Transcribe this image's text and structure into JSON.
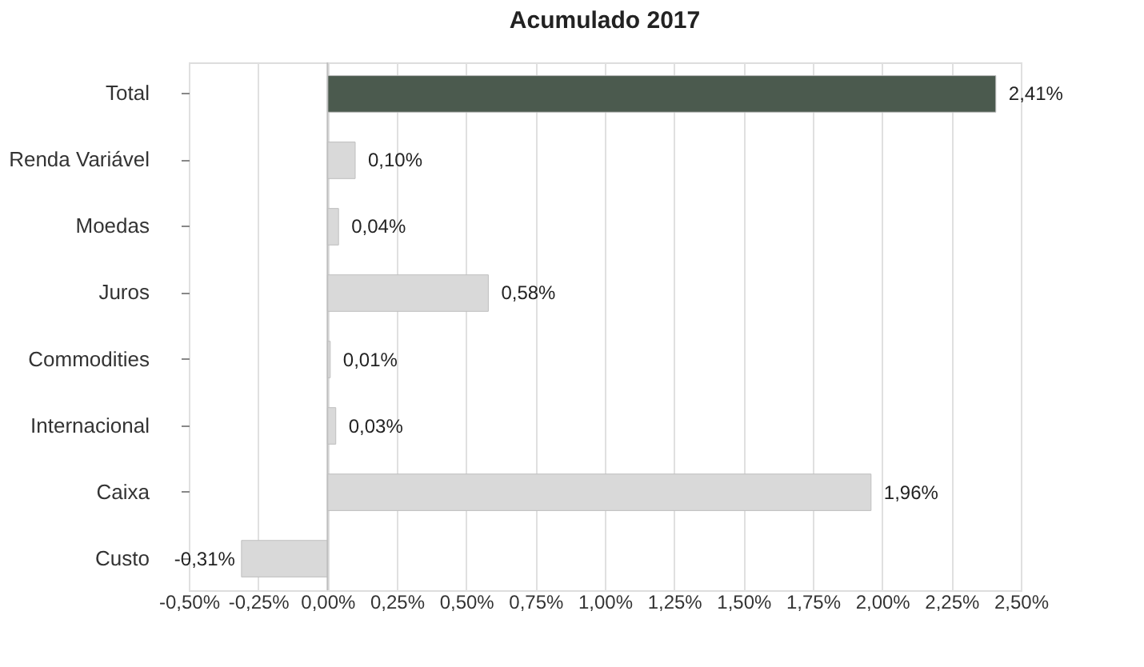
{
  "chart_data": {
    "type": "bar",
    "orientation": "horizontal",
    "title": "Acumulado  2017",
    "categories": [
      "Total",
      "Renda Variável",
      "Moedas",
      "Juros",
      "Commodities",
      "Internacional",
      "Caixa",
      "Custo"
    ],
    "values": [
      2.41,
      0.1,
      0.04,
      0.58,
      0.01,
      0.03,
      1.96,
      -0.31
    ],
    "colors": [
      "#4b5a4e",
      "#d9d9d9",
      "#d9d9d9",
      "#d9d9d9",
      "#d9d9d9",
      "#d9d9d9",
      "#d9d9d9",
      "#d9d9d9"
    ],
    "value_labels": [
      "2,41%",
      "0,10%",
      "0,04%",
      "0,58%",
      "0,01%",
      "0,03%",
      "1,96%",
      "-0,31%"
    ],
    "xlim": [
      -0.5,
      2.5
    ],
    "xticks": [
      {
        "value": -0.5,
        "label": "-0,50%"
      },
      {
        "value": -0.25,
        "label": "-0,25%"
      },
      {
        "value": 0,
        "label": "0,00%"
      },
      {
        "value": 0.25,
        "label": "0,25%"
      },
      {
        "value": 0.5,
        "label": "0,50%"
      },
      {
        "value": 0.75,
        "label": "0,75%"
      },
      {
        "value": 1.0,
        "label": "1,00%"
      },
      {
        "value": 1.25,
        "label": "1,25%"
      },
      {
        "value": 1.5,
        "label": "1,50%"
      },
      {
        "value": 1.75,
        "label": "1,75%"
      },
      {
        "value": 2.0,
        "label": "2,00%"
      },
      {
        "value": 2.25,
        "label": "2,25%"
      },
      {
        "value": 2.5,
        "label": "2,50%"
      }
    ],
    "grid": "x"
  }
}
